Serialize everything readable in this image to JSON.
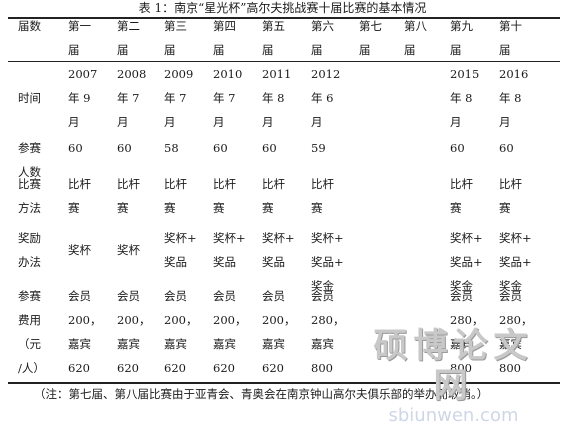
{
  "caption": "表 1：南京“星光杯”高尔夫挑战赛十届比赛的基本情况",
  "header": [
    "届数",
    "第一\n届",
    "第二\n届",
    "第三\n届",
    "第四\n届",
    "第五\n届",
    "第六\n届",
    "第七\n届",
    "第八\n届",
    "第九\n届",
    "第十\n届"
  ],
  "rows": [
    {
      "label": "时间",
      "cells": [
        "2007\n年 9\n月",
        "2008\n年 7\n月",
        "2009\n年 7\n月",
        "2010\n年 7\n月",
        "2011\n年 8\n月",
        "2012\n年 6\n月",
        "",
        "",
        "2015\n年 8\n月",
        "2016\n年 8\n月"
      ]
    },
    {
      "label": "参赛\n人数",
      "cells": [
        "60",
        "60",
        "58",
        "60",
        "60",
        "59",
        "",
        "",
        "60",
        "60"
      ]
    },
    {
      "label": "比赛\n方法",
      "cells": [
        "比杆\n赛",
        "比杆\n赛",
        "比杆\n赛",
        "比杆\n赛",
        "比杆\n赛",
        "比杆\n赛",
        "",
        "",
        "比杆\n赛",
        "比杆\n赛"
      ]
    },
    {
      "label": "奖励\n办法",
      "cells": [
        "奖杯",
        "奖杯",
        "奖杯+\n奖品",
        "奖杯+\n奖品",
        "奖杯+\n奖品",
        "奖杯+\n奖品+\n奖金",
        "",
        "",
        "奖杯+\n奖品+\n奖金",
        "奖杯+\n奖品+\n奖金"
      ]
    },
    {
      "label": "参赛\n费用\n（元\n/人）",
      "cells": [
        "会员\n200，\n嘉宾\n620",
        "会员\n200，\n嘉宾\n620",
        "会员\n200，\n嘉宾\n620",
        "会员\n200，\n嘉宾\n620",
        "会员\n200，\n嘉宾\n620",
        "会员\n280，\n嘉宾\n800",
        "",
        "",
        "会员\n280，\n嘉宾\n800",
        "会员\n280，\n嘉宾\n800"
      ]
    }
  ],
  "note": "（注：第七届、第八届比赛由于亚青会、青奥会在南京钟山高尔夫俱乐部的举办而取消。）",
  "watermark": {
    "main": "硕博论文网",
    "sub": "sbiunwen.com"
  }
}
